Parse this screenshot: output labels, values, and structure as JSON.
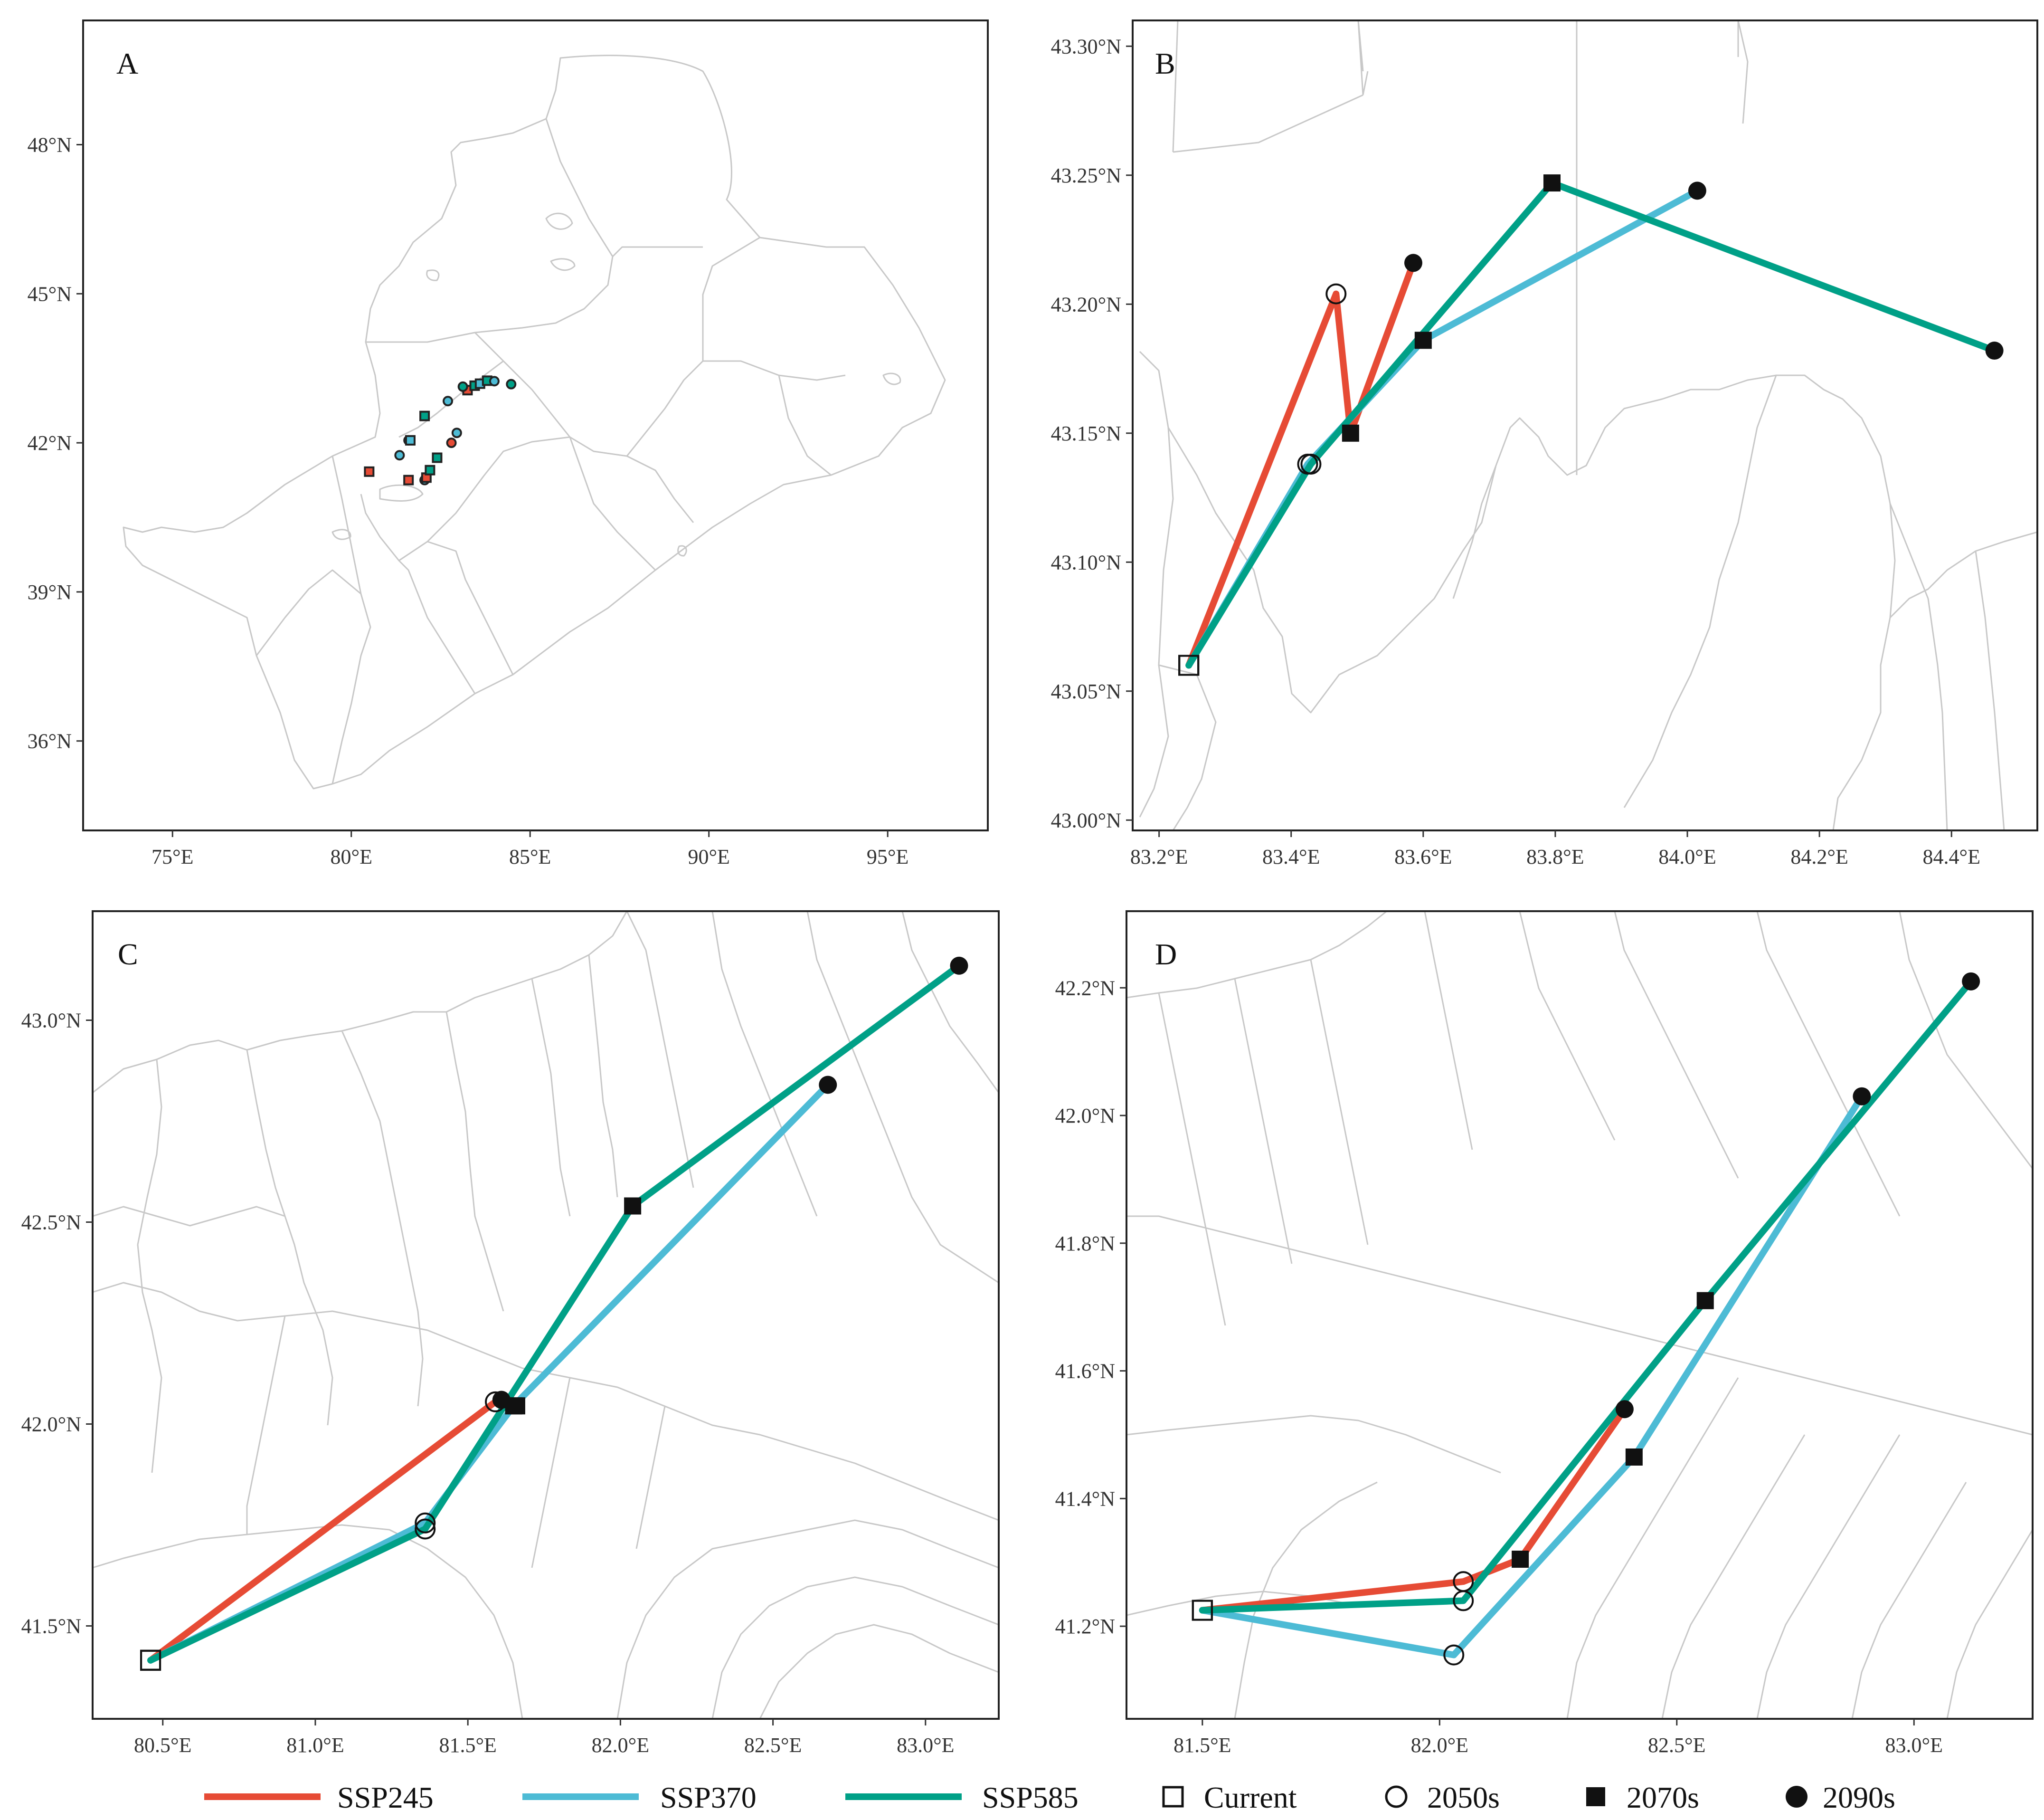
{
  "colors": {
    "SSP245": "#e64b35",
    "SSP370": "#4dbbd5",
    "SSP585": "#00a087",
    "boundary": "#c8c8c8",
    "marker": "#000000"
  },
  "legend": {
    "scenarios": [
      {
        "label": "SSP245",
        "color": "#e64b35"
      },
      {
        "label": "SSP370",
        "color": "#4dbbd5"
      },
      {
        "label": "SSP585",
        "color": "#00a087"
      }
    ],
    "periods": [
      {
        "label": "Current",
        "marker": "open-square-icon"
      },
      {
        "label": "2050s",
        "marker": "open-circle-icon"
      },
      {
        "label": "2070s",
        "marker": "filled-square-icon"
      },
      {
        "label": "2090s",
        "marker": "filled-circle-icon"
      }
    ]
  },
  "chart_data": [
    {
      "type": "map",
      "panel": "A",
      "xticks": [
        "75°E",
        "80°E",
        "85°E",
        "90°E",
        "95°E"
      ],
      "yticks": [
        "48°N",
        "45°N",
        "42°N",
        "39°N",
        "36°N"
      ],
      "xlim": [
        72.5,
        97.8
      ],
      "ylim": [
        34.2,
        50.5
      ],
      "points": [
        {
          "lon": 80.5,
          "lat": 41.42,
          "color": "#e64b35",
          "shape": "square"
        },
        {
          "lon": 81.6,
          "lat": 41.25,
          "color": "#e64b35",
          "shape": "square"
        },
        {
          "lon": 81.35,
          "lat": 41.75,
          "color": "#4dbbd5",
          "shape": "circle"
        },
        {
          "lon": 81.6,
          "lat": 42.05,
          "color": "#00a087",
          "shape": "circle"
        },
        {
          "lon": 81.65,
          "lat": 42.05,
          "color": "#4dbbd5",
          "shape": "square"
        },
        {
          "lon": 82.05,
          "lat": 41.25,
          "color": "#4dbbd5",
          "shape": "circle"
        },
        {
          "lon": 82.1,
          "lat": 41.3,
          "color": "#e64b35",
          "shape": "square"
        },
        {
          "lon": 82.2,
          "lat": 41.45,
          "color": "#00a087",
          "shape": "square"
        },
        {
          "lon": 82.4,
          "lat": 41.7,
          "color": "#00a087",
          "shape": "square"
        },
        {
          "lon": 82.8,
          "lat": 42.0,
          "color": "#e64b35",
          "shape": "circle"
        },
        {
          "lon": 82.95,
          "lat": 42.2,
          "color": "#4dbbd5",
          "shape": "circle"
        },
        {
          "lon": 82.05,
          "lat": 42.54,
          "color": "#00a087",
          "shape": "square"
        },
        {
          "lon": 82.7,
          "lat": 42.84,
          "color": "#4dbbd5",
          "shape": "circle"
        },
        {
          "lon": 83.25,
          "lat": 43.06,
          "color": "#e64b35",
          "shape": "square"
        },
        {
          "lon": 83.45,
          "lat": 43.15,
          "color": "#00a087",
          "shape": "square"
        },
        {
          "lon": 83.6,
          "lat": 43.19,
          "color": "#4dbbd5",
          "shape": "square"
        },
        {
          "lon": 83.8,
          "lat": 43.25,
          "color": "#00a087",
          "shape": "square"
        },
        {
          "lon": 84.0,
          "lat": 43.24,
          "color": "#4dbbd5",
          "shape": "circle"
        },
        {
          "lon": 84.47,
          "lat": 43.18,
          "color": "#00a087",
          "shape": "circle"
        },
        {
          "lon": 83.12,
          "lat": 43.13,
          "color": "#00a087",
          "shape": "circle"
        }
      ]
    },
    {
      "type": "map",
      "panel": "B",
      "xticks": [
        "83.2°E",
        "83.4°E",
        "83.6°E",
        "83.8°E",
        "84.0°E",
        "84.2°E",
        "84.4°E"
      ],
      "yticks": [
        "43.30°N",
        "43.25°N",
        "43.20°N",
        "43.15°N",
        "43.10°N",
        "43.05°N",
        "43.00°N"
      ],
      "xlim": [
        83.16,
        84.53
      ],
      "ylim": [
        42.996,
        43.31
      ],
      "current": {
        "lon": 83.245,
        "lat": 43.06
      },
      "series": [
        {
          "name": "SSP245",
          "points": [
            {
              "lon": 83.245,
              "lat": 43.06,
              "period": "Current"
            },
            {
              "lon": 83.468,
              "lat": 43.204,
              "period": "2050s"
            },
            {
              "lon": 83.49,
              "lat": 43.15,
              "period": "2070s"
            },
            {
              "lon": 83.585,
              "lat": 43.216,
              "period": "2090s"
            }
          ]
        },
        {
          "name": "SSP370",
          "points": [
            {
              "lon": 83.245,
              "lat": 43.06,
              "period": "Current"
            },
            {
              "lon": 83.425,
              "lat": 43.138,
              "period": "2050s"
            },
            {
              "lon": 83.6,
              "lat": 43.186,
              "period": "2070s"
            },
            {
              "lon": 84.015,
              "lat": 43.244,
              "period": "2090s"
            }
          ]
        },
        {
          "name": "SSP585",
          "points": [
            {
              "lon": 83.245,
              "lat": 43.06,
              "period": "Current"
            },
            {
              "lon": 83.43,
              "lat": 43.138,
              "period": "2050s"
            },
            {
              "lon": 83.795,
              "lat": 43.247,
              "period": "2070s"
            },
            {
              "lon": 84.465,
              "lat": 43.182,
              "period": "2090s"
            }
          ]
        }
      ]
    },
    {
      "type": "map",
      "panel": "C",
      "xticks": [
        "80.5°E",
        "81.0°E",
        "81.5°E",
        "82.0°E",
        "82.5°E",
        "83.0°E"
      ],
      "yticks": [
        "43.0°N",
        "42.5°N",
        "42.0°N",
        "41.5°N"
      ],
      "xlim": [
        80.27,
        83.24
      ],
      "ylim": [
        41.27,
        43.27
      ],
      "series": [
        {
          "name": "SSP245",
          "points": [
            {
              "lon": 80.46,
              "lat": 41.415,
              "period": "Current"
            },
            {
              "lon": 81.59,
              "lat": 42.055,
              "period": "2050s"
            },
            {
              "lon": 81.66,
              "lat": 42.045,
              "period": "2070s"
            },
            {
              "lon": 81.61,
              "lat": 42.06,
              "period": "2090s"
            }
          ]
        },
        {
          "name": "SSP370",
          "points": [
            {
              "lon": 80.46,
              "lat": 41.415,
              "period": "Current"
            },
            {
              "lon": 81.36,
              "lat": 41.755,
              "period": "2050s"
            },
            {
              "lon": 81.65,
              "lat": 42.045,
              "period": "2070s"
            },
            {
              "lon": 82.68,
              "lat": 42.84,
              "period": "2090s"
            }
          ]
        },
        {
          "name": "SSP585",
          "points": [
            {
              "lon": 80.46,
              "lat": 41.415,
              "period": "Current"
            },
            {
              "lon": 81.36,
              "lat": 41.74,
              "period": "2050s"
            },
            {
              "lon": 82.04,
              "lat": 42.54,
              "period": "2070s"
            },
            {
              "lon": 83.11,
              "lat": 43.135,
              "period": "2090s"
            }
          ]
        }
      ]
    },
    {
      "type": "map",
      "panel": "D",
      "xticks": [
        "81.5°E",
        "82.0°E",
        "82.5°E",
        "83.0°E"
      ],
      "yticks": [
        "42.2°N",
        "42.0°N",
        "41.8°N",
        "41.6°N",
        "41.4°N",
        "41.2°N"
      ],
      "xlim": [
        81.34,
        83.25
      ],
      "ylim": [
        41.055,
        42.32
      ],
      "series": [
        {
          "name": "SSP245",
          "points": [
            {
              "lon": 81.5,
              "lat": 41.225,
              "period": "Current"
            },
            {
              "lon": 82.05,
              "lat": 41.27,
              "period": "2050s"
            },
            {
              "lon": 82.17,
              "lat": 41.305,
              "period": "2070s"
            },
            {
              "lon": 82.39,
              "lat": 41.54,
              "period": "2090s"
            }
          ]
        },
        {
          "name": "SSP370",
          "points": [
            {
              "lon": 81.5,
              "lat": 41.225,
              "period": "Current"
            },
            {
              "lon": 82.03,
              "lat": 41.155,
              "period": "2050s"
            },
            {
              "lon": 82.41,
              "lat": 41.465,
              "period": "2070s"
            },
            {
              "lon": 82.89,
              "lat": 42.03,
              "period": "2090s"
            }
          ]
        },
        {
          "name": "SSP585",
          "points": [
            {
              "lon": 81.5,
              "lat": 41.225,
              "period": "Current"
            },
            {
              "lon": 82.05,
              "lat": 41.24,
              "period": "2050s"
            },
            {
              "lon": 82.56,
              "lat": 41.71,
              "period": "2070s"
            },
            {
              "lon": 83.12,
              "lat": 42.21,
              "period": "2090s"
            }
          ]
        }
      ]
    }
  ]
}
